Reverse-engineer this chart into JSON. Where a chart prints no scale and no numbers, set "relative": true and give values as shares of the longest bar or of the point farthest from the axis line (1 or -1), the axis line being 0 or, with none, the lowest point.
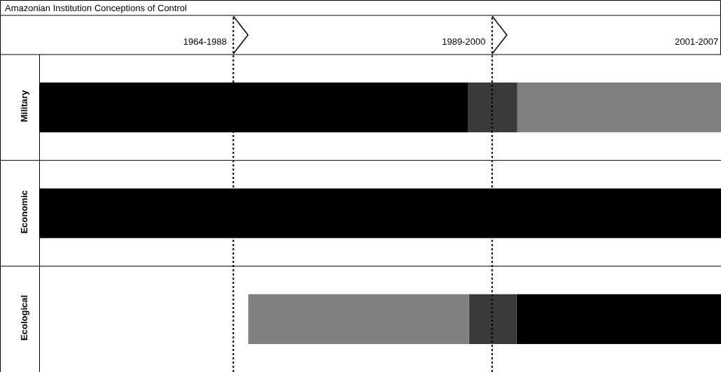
{
  "chart_data": {
    "type": "bar",
    "title": "Amazonian Institution Conceptions of Control",
    "orientation": "horizontal",
    "relative": true,
    "stacked": true,
    "categories": [
      "Military",
      "Economic",
      "Ecological"
    ],
    "annotations": [
      "1964-1988",
      "1989-2000",
      "2001-2007"
    ],
    "series": [
      {
        "colors": [
          "#808080",
          "#000000",
          "#000000"
        ],
        "values": [
          0.299,
          1,
          0.3
        ]
      },
      {
        "color": "#3a3a3a",
        "values": [
          0.072,
          null,
          0.07
        ]
      },
      {
        "colors": [
          "#000000",
          null,
          "#808080"
        ],
        "values": [
          0.629,
          null,
          0.324
        ]
      }
    ],
    "ref_lines": [
      {
        "axis": "x",
        "value": 0.716,
        "line_style": "dotted"
      },
      {
        "axis": "x",
        "value": 0.336,
        "line_style": "dotted"
      }
    ]
  }
}
